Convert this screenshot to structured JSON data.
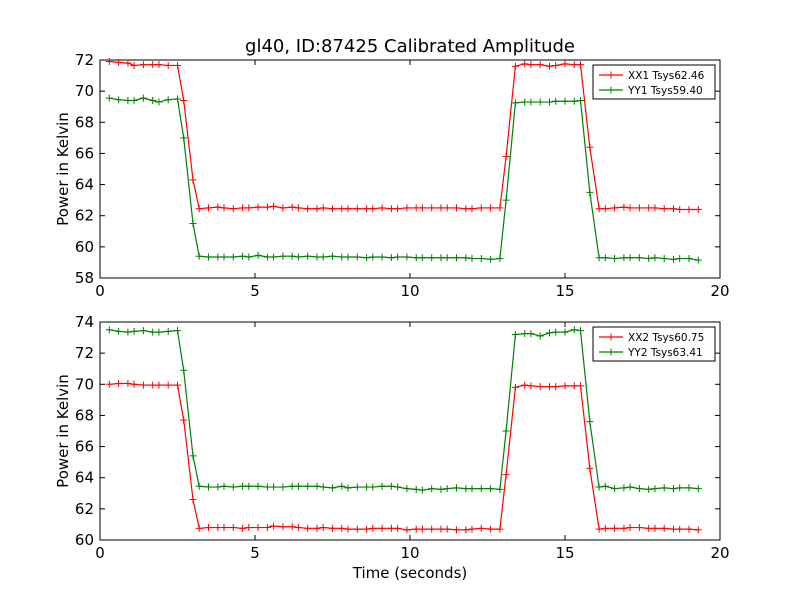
{
  "figure": {
    "title": "gl40, ID:87425 Calibrated Amplitude"
  },
  "chart_data": [
    {
      "type": "line",
      "title": "gl40, ID:87425 Calibrated Amplitude",
      "xlabel": "",
      "ylabel": "Power in Kelvin",
      "xlim": [
        0,
        20
      ],
      "ylim": [
        58,
        72
      ],
      "xticks": [
        0,
        5,
        10,
        15,
        20
      ],
      "yticks": [
        58,
        60,
        62,
        64,
        66,
        68,
        70,
        72
      ],
      "grid": false,
      "legend_position": "top-right",
      "x": [
        0.3,
        0.6,
        0.9,
        1.1,
        1.4,
        1.7,
        1.9,
        2.2,
        2.5,
        2.7,
        3.0,
        3.2,
        3.5,
        3.8,
        4.0,
        4.3,
        4.6,
        4.8,
        5.1,
        5.4,
        5.6,
        5.9,
        6.2,
        6.4,
        6.7,
        7.0,
        7.2,
        7.5,
        7.8,
        8.0,
        8.3,
        8.6,
        8.8,
        9.1,
        9.4,
        9.6,
        9.9,
        10.2,
        10.4,
        10.7,
        11.0,
        11.2,
        11.5,
        11.8,
        12.0,
        12.3,
        12.6,
        12.9,
        13.1,
        13.4,
        13.7,
        13.9,
        14.2,
        14.5,
        14.7,
        15.0,
        15.3,
        15.5,
        15.8,
        16.1,
        16.3,
        16.6,
        16.9,
        17.1,
        17.4,
        17.7,
        17.9,
        18.2,
        18.5,
        18.7,
        19.0,
        19.3
      ],
      "series": [
        {
          "name": "XX1 Tsys62.46",
          "color": "#ff0000",
          "values": [
            71.9,
            71.85,
            71.8,
            71.65,
            71.7,
            71.7,
            71.7,
            71.65,
            71.65,
            69.4,
            64.3,
            62.45,
            62.5,
            62.55,
            62.5,
            62.45,
            62.5,
            62.5,
            62.55,
            62.55,
            62.6,
            62.5,
            62.55,
            62.5,
            62.45,
            62.45,
            62.5,
            62.45,
            62.45,
            62.45,
            62.45,
            62.45,
            62.45,
            62.5,
            62.45,
            62.45,
            62.5,
            62.5,
            62.5,
            62.5,
            62.5,
            62.5,
            62.5,
            62.45,
            62.45,
            62.5,
            62.5,
            62.5,
            65.8,
            71.6,
            71.75,
            71.7,
            71.7,
            71.6,
            71.65,
            71.75,
            71.7,
            71.7,
            66.4,
            62.45,
            62.45,
            62.5,
            62.55,
            62.5,
            62.5,
            62.5,
            62.5,
            62.45,
            62.45,
            62.4,
            62.4,
            62.4
          ]
        },
        {
          "name": "YY1 Tsys59.40",
          "color": "#008000",
          "values": [
            69.55,
            69.45,
            69.4,
            69.4,
            69.55,
            69.4,
            69.3,
            69.45,
            69.5,
            67.0,
            61.5,
            59.4,
            59.35,
            59.35,
            59.35,
            59.35,
            59.4,
            59.35,
            59.45,
            59.35,
            59.35,
            59.4,
            59.4,
            59.35,
            59.4,
            59.35,
            59.35,
            59.4,
            59.35,
            59.35,
            59.35,
            59.3,
            59.35,
            59.35,
            59.3,
            59.35,
            59.35,
            59.3,
            59.3,
            59.3,
            59.3,
            59.3,
            59.3,
            59.3,
            59.25,
            59.25,
            59.2,
            59.25,
            63.0,
            69.25,
            69.3,
            69.3,
            69.3,
            69.3,
            69.35,
            69.35,
            69.35,
            69.4,
            63.5,
            59.3,
            59.3,
            59.25,
            59.3,
            59.3,
            59.3,
            59.25,
            59.3,
            59.25,
            59.2,
            59.25,
            59.25,
            59.15
          ]
        }
      ]
    },
    {
      "type": "line",
      "title": "",
      "xlabel": "Time (seconds)",
      "ylabel": "Power in Kelvin",
      "xlim": [
        0,
        20
      ],
      "ylim": [
        60,
        74
      ],
      "xticks": [
        0,
        5,
        10,
        15,
        20
      ],
      "yticks": [
        60,
        62,
        64,
        66,
        68,
        70,
        72,
        74
      ],
      "grid": false,
      "legend_position": "top-right",
      "x": [
        0.3,
        0.6,
        0.9,
        1.1,
        1.4,
        1.7,
        1.9,
        2.2,
        2.5,
        2.7,
        3.0,
        3.2,
        3.5,
        3.8,
        4.0,
        4.3,
        4.6,
        4.8,
        5.1,
        5.4,
        5.6,
        5.9,
        6.2,
        6.4,
        6.7,
        7.0,
        7.2,
        7.5,
        7.8,
        8.0,
        8.3,
        8.6,
        8.8,
        9.1,
        9.4,
        9.6,
        9.9,
        10.2,
        10.4,
        10.7,
        11.0,
        11.2,
        11.5,
        11.8,
        12.0,
        12.3,
        12.6,
        12.9,
        13.1,
        13.4,
        13.7,
        13.9,
        14.2,
        14.5,
        14.7,
        15.0,
        15.3,
        15.5,
        15.8,
        16.1,
        16.3,
        16.6,
        16.9,
        17.1,
        17.4,
        17.7,
        17.9,
        18.2,
        18.5,
        18.7,
        19.0,
        19.3
      ],
      "series": [
        {
          "name": "XX2 Tsys60.75",
          "color": "#ff0000",
          "values": [
            70.0,
            70.05,
            70.05,
            70.0,
            69.95,
            69.95,
            69.95,
            69.95,
            69.95,
            67.7,
            62.6,
            60.75,
            60.8,
            60.8,
            60.8,
            60.8,
            60.75,
            60.8,
            60.8,
            60.8,
            60.9,
            60.85,
            60.85,
            60.8,
            60.75,
            60.75,
            60.8,
            60.75,
            60.75,
            60.7,
            60.7,
            60.7,
            60.75,
            60.75,
            60.75,
            60.75,
            60.65,
            60.7,
            60.7,
            60.7,
            60.7,
            60.7,
            60.65,
            60.65,
            60.7,
            60.75,
            60.7,
            60.7,
            64.2,
            69.8,
            69.95,
            69.9,
            69.85,
            69.85,
            69.85,
            69.9,
            69.9,
            69.9,
            64.6,
            60.7,
            60.75,
            60.75,
            60.75,
            60.8,
            60.8,
            60.75,
            60.75,
            60.75,
            60.7,
            60.7,
            60.7,
            60.65
          ]
        },
        {
          "name": "YY2 Tsys63.41",
          "color": "#008000",
          "values": [
            73.5,
            73.4,
            73.35,
            73.4,
            73.45,
            73.35,
            73.35,
            73.4,
            73.45,
            70.9,
            65.4,
            63.45,
            63.4,
            63.4,
            63.45,
            63.4,
            63.45,
            63.45,
            63.45,
            63.4,
            63.4,
            63.4,
            63.45,
            63.45,
            63.45,
            63.45,
            63.4,
            63.35,
            63.45,
            63.35,
            63.4,
            63.4,
            63.4,
            63.45,
            63.45,
            63.4,
            63.3,
            63.25,
            63.2,
            63.3,
            63.25,
            63.3,
            63.35,
            63.3,
            63.3,
            63.3,
            63.3,
            63.25,
            67.0,
            73.2,
            73.25,
            73.25,
            73.1,
            73.3,
            73.35,
            73.35,
            73.5,
            73.45,
            67.6,
            63.4,
            63.45,
            63.3,
            63.35,
            63.4,
            63.3,
            63.25,
            63.3,
            63.35,
            63.3,
            63.35,
            63.35,
            63.3
          ]
        }
      ]
    }
  ]
}
